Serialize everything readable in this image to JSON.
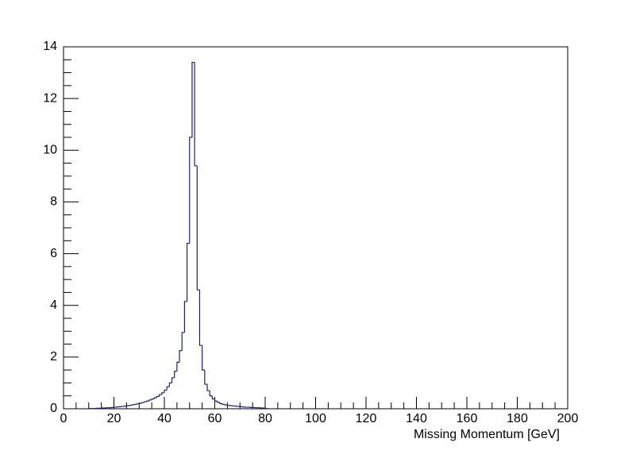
{
  "chart_data": {
    "type": "histogram",
    "x_label": "Missing Momentum [GeV]",
    "color": "#1f1f7a",
    "bins": [
      10,
      11,
      12,
      13,
      14,
      15,
      16,
      17,
      18,
      19,
      20,
      21,
      22,
      23,
      24,
      25,
      26,
      27,
      28,
      29,
      30,
      31,
      32,
      33,
      34,
      35,
      36,
      37,
      38,
      39,
      40,
      41,
      42,
      43,
      44,
      45,
      46,
      47,
      48,
      49,
      50,
      51,
      52,
      53,
      54,
      55,
      56,
      57,
      58,
      59,
      60,
      61,
      62,
      63,
      64,
      65,
      66,
      67,
      68,
      69,
      70,
      71,
      72,
      73,
      74,
      75,
      76,
      77,
      78,
      79,
      80,
      81
    ],
    "counts": [
      0.01,
      0.01,
      0.01,
      0.02,
      0.02,
      0.03,
      0.03,
      0.04,
      0.04,
      0.05,
      0.06,
      0.07,
      0.08,
      0.09,
      0.1,
      0.12,
      0.13,
      0.15,
      0.17,
      0.19,
      0.21,
      0.24,
      0.27,
      0.3,
      0.34,
      0.38,
      0.43,
      0.48,
      0.55,
      0.62,
      0.72,
      0.85,
      1.0,
      1.2,
      1.45,
      1.8,
      2.25,
      2.95,
      4.15,
      6.4,
      10.5,
      13.4,
      9.4,
      4.6,
      2.45,
      1.5,
      0.95,
      0.7,
      0.5,
      0.38,
      0.3,
      0.25,
      0.2,
      0.17,
      0.15,
      0.13,
      0.12,
      0.11,
      0.1,
      0.09,
      0.08,
      0.07,
      0.06,
      0.06,
      0.05,
      0.05,
      0.04,
      0.04,
      0.03,
      0.03,
      0.01
    ],
    "xlim": [
      0,
      200
    ],
    "ylim": [
      0,
      14
    ],
    "xticks": [
      0,
      20,
      40,
      60,
      80,
      100,
      120,
      140,
      160,
      180,
      200
    ],
    "yticks": [
      0,
      2,
      4,
      6,
      8,
      10,
      12,
      14
    ],
    "xminorticks": [
      5,
      10,
      15,
      25,
      30,
      35,
      45,
      50,
      55,
      65,
      70,
      75,
      85,
      90,
      95,
      105,
      110,
      115,
      125,
      130,
      135,
      145,
      150,
      155,
      165,
      170,
      175,
      185,
      190,
      195
    ],
    "yminorticks": [
      0.5,
      1,
      1.5,
      2.5,
      3,
      3.5,
      4.5,
      5,
      5.5,
      6.5,
      7,
      7.5,
      8.5,
      9,
      9.5,
      10.5,
      11,
      11.5,
      12.5,
      13,
      13.5
    ]
  }
}
